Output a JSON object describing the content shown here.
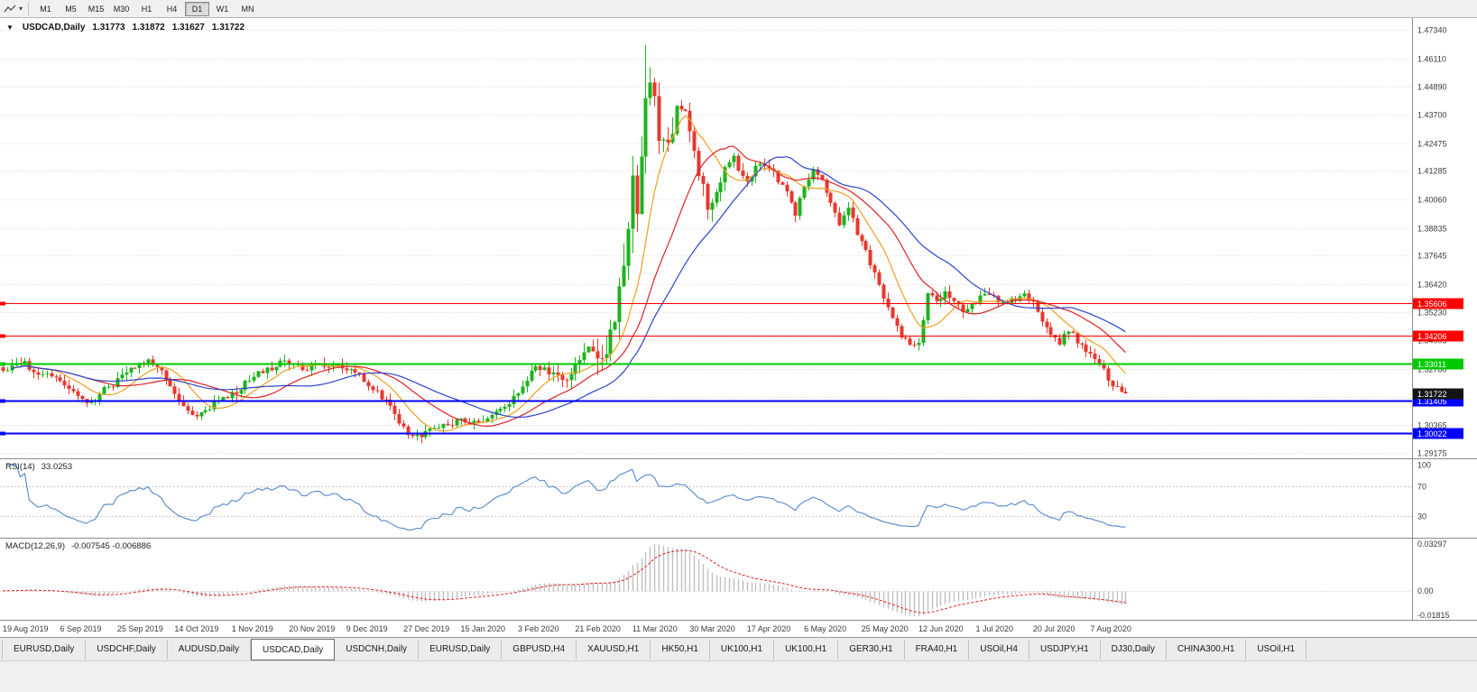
{
  "toolbar": {
    "timeframes": [
      {
        "label": "M1",
        "active": false
      },
      {
        "label": "M5",
        "active": false
      },
      {
        "label": "M15",
        "active": false
      },
      {
        "label": "M30",
        "active": false
      },
      {
        "label": "H1",
        "active": false
      },
      {
        "label": "H4",
        "active": false
      },
      {
        "label": "D1",
        "active": true
      },
      {
        "label": "W1",
        "active": false
      },
      {
        "label": "MN",
        "active": false
      }
    ]
  },
  "chart": {
    "symbol_line": {
      "symbol": "USDCAD,Daily",
      "open": "1.31773",
      "high": "1.31872",
      "low": "1.31627",
      "close": "1.31722"
    },
    "rsi_label": "RSI(14)",
    "rsi_value": "33.0253",
    "macd_label": "MACD(12,26,9)",
    "macd_values": "-0.007545 -0.006886"
  },
  "chart_data": {
    "type": "candlestick",
    "symbol": "USDCAD",
    "timeframe": "Daily",
    "colors": {
      "up": "#1db31d",
      "down": "#e8372c",
      "ma_fast": "#efa020",
      "ma_mid": "#dd2222",
      "ma_slow": "#2945cc",
      "rsi": "#5588cc",
      "macd_hist": "#c0c0c0",
      "macd_signal": "#dd2222",
      "grid": "#dadada"
    },
    "num_candles": 256,
    "close_anchors": [
      [
        0,
        1.327
      ],
      [
        4,
        1.331
      ],
      [
        8,
        1.326
      ],
      [
        13,
        1.323
      ],
      [
        17,
        1.315
      ],
      [
        20,
        1.314
      ],
      [
        24,
        1.32
      ],
      [
        26,
        1.323
      ],
      [
        30,
        1.329
      ],
      [
        33,
        1.331
      ],
      [
        37,
        1.324
      ],
      [
        40,
        1.313
      ],
      [
        44,
        1.307
      ],
      [
        48,
        1.313
      ],
      [
        52,
        1.317
      ],
      [
        56,
        1.323
      ],
      [
        60,
        1.328
      ],
      [
        65,
        1.331
      ],
      [
        69,
        1.328
      ],
      [
        73,
        1.33
      ],
      [
        78,
        1.328
      ],
      [
        82,
        1.323
      ],
      [
        86,
        1.316
      ],
      [
        89,
        1.308
      ],
      [
        92,
        1.3
      ],
      [
        95,
        1.2985
      ],
      [
        99,
        1.303
      ],
      [
        104,
        1.3055
      ],
      [
        108,
        1.304
      ],
      [
        112,
        1.309
      ],
      [
        115,
        1.314
      ],
      [
        117,
        1.317
      ],
      [
        121,
        1.329
      ],
      [
        125,
        1.3255
      ],
      [
        128,
        1.322
      ],
      [
        130,
        1.328
      ],
      [
        133,
        1.338
      ],
      [
        136,
        1.333
      ],
      [
        138,
        1.34
      ],
      [
        140,
        1.362
      ],
      [
        142,
        1.385
      ],
      [
        143,
        1.405
      ],
      [
        144,
        1.395
      ],
      [
        145,
        1.425
      ],
      [
        146,
        1.45
      ],
      [
        148,
        1.44
      ],
      [
        150,
        1.42
      ],
      [
        151,
        1.43
      ],
      [
        154,
        1.442
      ],
      [
        156,
        1.426
      ],
      [
        158,
        1.41
      ],
      [
        160,
        1.398
      ],
      [
        162,
        1.405
      ],
      [
        164,
        1.415
      ],
      [
        166,
        1.418
      ],
      [
        169,
        1.408
      ],
      [
        172,
        1.417
      ],
      [
        175,
        1.412
      ],
      [
        178,
        1.403
      ],
      [
        180,
        1.395
      ],
      [
        182,
        1.407
      ],
      [
        184,
        1.413
      ],
      [
        186,
        1.41
      ],
      [
        188,
        1.398
      ],
      [
        190,
        1.39
      ],
      [
        192,
        1.398
      ],
      [
        194,
        1.385
      ],
      [
        196,
        1.378
      ],
      [
        198,
        1.368
      ],
      [
        200,
        1.358
      ],
      [
        202,
        1.35
      ],
      [
        204,
        1.342
      ],
      [
        206,
        1.339
      ],
      [
        208,
        1.338
      ],
      [
        210,
        1.36
      ],
      [
        212,
        1.356
      ],
      [
        214,
        1.362
      ],
      [
        216,
        1.357
      ],
      [
        218,
        1.353
      ],
      [
        221,
        1.357
      ],
      [
        224,
        1.36
      ],
      [
        227,
        1.355
      ],
      [
        230,
        1.358
      ],
      [
        232,
        1.361
      ],
      [
        234,
        1.356
      ],
      [
        236,
        1.348
      ],
      [
        238,
        1.342
      ],
      [
        240,
        1.339
      ],
      [
        242,
        1.345
      ],
      [
        244,
        1.339
      ],
      [
        247,
        1.335
      ],
      [
        249,
        1.33
      ],
      [
        251,
        1.324
      ],
      [
        253,
        1.319
      ],
      [
        255,
        1.31722
      ]
    ],
    "extremes": [
      {
        "index": 146,
        "high": 1.4668
      },
      {
        "index": 95,
        "low": 1.2958
      }
    ],
    "last_close": 1.31722,
    "price_axis": {
      "top": 1.47843,
      "bottom": 1.289,
      "ticks": [
        "1.47340",
        "1.46110",
        "1.44890",
        "1.43700",
        "1.42475",
        "1.41285",
        "1.40060",
        "1.38835",
        "1.37645",
        "1.36420",
        "1.35230",
        "1.34005",
        "1.32780",
        "1.31590",
        "1.30365",
        "1.29175"
      ]
    },
    "hlines": [
      {
        "price": 1.35606,
        "label": "1.35606",
        "color": "#ff0000",
        "width": 1
      },
      {
        "price": 1.34206,
        "label": "1.34206",
        "color": "#ff0000",
        "width": 1
      },
      {
        "price": 1.33011,
        "label": "1.33011",
        "color": "#00ca00",
        "width": 2
      },
      {
        "price": 1.31405,
        "label": "1.31405",
        "color": "#0000ff",
        "width": 2
      },
      {
        "price": 1.30022,
        "label": "1.30022",
        "color": "#0000ff",
        "width": 2
      }
    ],
    "current_price": {
      "value": 1.31722,
      "label": "1.31722",
      "bg": "#141414"
    },
    "moving_averages": [
      {
        "period": 10,
        "color_key": "ma_fast"
      },
      {
        "period": 21,
        "color_key": "ma_mid"
      },
      {
        "period": 34,
        "color_key": "ma_slow"
      }
    ],
    "x_ticks": [
      {
        "day": 0,
        "label": "19 Aug 2019"
      },
      {
        "day": 13,
        "label": "6 Sep 2019"
      },
      {
        "day": 26,
        "label": "25 Sep 2019"
      },
      {
        "day": 39,
        "label": "14 Oct 2019"
      },
      {
        "day": 52,
        "label": "1 Nov 2019"
      },
      {
        "day": 65,
        "label": "20 Nov 2019"
      },
      {
        "day": 78,
        "label": "9 Dec 2019"
      },
      {
        "day": 91,
        "label": "27 Dec 2019"
      },
      {
        "day": 104,
        "label": "15 Jan 2020"
      },
      {
        "day": 117,
        "label": "3 Feb 2020"
      },
      {
        "day": 130,
        "label": "21 Feb 2020"
      },
      {
        "day": 143,
        "label": "11 Mar 2020"
      },
      {
        "day": 156,
        "label": "30 Mar 2020"
      },
      {
        "day": 169,
        "label": "17 Apr 2020"
      },
      {
        "day": 182,
        "label": "6 May 2020"
      },
      {
        "day": 195,
        "label": "25 May 2020"
      },
      {
        "day": 208,
        "label": "12 Jun 2020"
      },
      {
        "day": 221,
        "label": "1 Jul 2020"
      },
      {
        "day": 234,
        "label": "20 Jul 2020"
      },
      {
        "day": 247,
        "label": "7 Aug 2020"
      }
    ],
    "rsi": {
      "period": 14,
      "current": "33.0253",
      "scale_top": 107,
      "scale_bottom": 0,
      "levels": [
        {
          "value": 100,
          "label": "100",
          "line": false
        },
        {
          "value": 70,
          "label": "70",
          "line": true
        },
        {
          "value": 30,
          "label": "30",
          "line": true
        }
      ]
    },
    "macd": {
      "fast": 12,
      "slow": 26,
      "signal": 9,
      "scale_top": 0.034,
      "scale_bottom": -0.0195,
      "axis": [
        {
          "value": 0.03297,
          "label": "0.03297"
        },
        {
          "value": 0,
          "label": "0.00"
        },
        {
          "value": -0.01815,
          "label": "-0.01815"
        }
      ]
    }
  },
  "tabs": {
    "items": [
      {
        "label": "EURUSD,Daily",
        "active": false
      },
      {
        "label": "USDCHF,Daily",
        "active": false
      },
      {
        "label": "AUDUSD,Daily",
        "active": false
      },
      {
        "label": "USDCAD,Daily",
        "active": true
      },
      {
        "label": "USDCNH,Daily",
        "active": false
      },
      {
        "label": "EURUSD,Daily",
        "active": false
      },
      {
        "label": "GBPUSD,H4",
        "active": false
      },
      {
        "label": "XAUUSD,H1",
        "active": false
      },
      {
        "label": "HK50,H1",
        "active": false
      },
      {
        "label": "UK100,H1",
        "active": false
      },
      {
        "label": "UK100,H1",
        "active": false
      },
      {
        "label": "GER30,H1",
        "active": false
      },
      {
        "label": "FRA40,H1",
        "active": false
      },
      {
        "label": "USOil,H4",
        "active": false
      },
      {
        "label": "USDJPY,H1",
        "active": false
      },
      {
        "label": "DJ30,Daily",
        "active": false
      },
      {
        "label": "CHINA300,H1",
        "active": false
      },
      {
        "label": "USOil,H1",
        "active": false
      }
    ]
  }
}
